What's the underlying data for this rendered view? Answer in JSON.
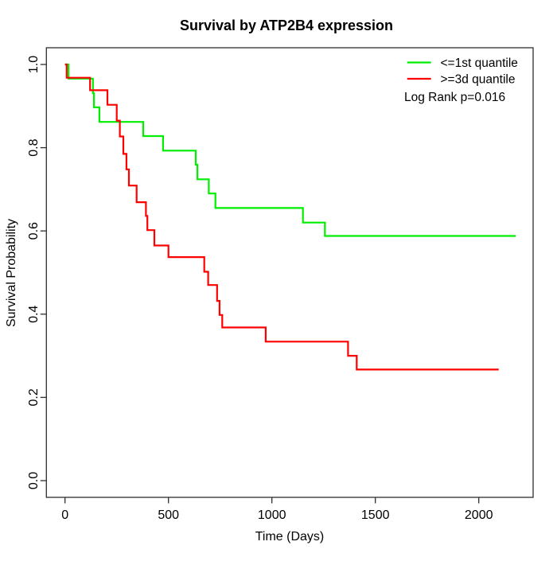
{
  "chart_data": {
    "type": "line",
    "subtype": "kaplan-meier-step",
    "title": "Survival by ATP2B4 expression",
    "xlabel": "Time (Days)",
    "ylabel": "Survival Probability",
    "xlim": [
      0,
      2200
    ],
    "ylim": [
      0.0,
      1.0
    ],
    "x_ticks": [
      0,
      500,
      1000,
      1500,
      2000
    ],
    "x_tick_labels": [
      "0",
      "500",
      "1000",
      "1500",
      "2000"
    ],
    "y_ticks": [
      0.0,
      0.2,
      0.4,
      0.6,
      0.8,
      1.0
    ],
    "y_tick_labels": [
      "0.0",
      "0.2",
      "0.4",
      "0.6",
      "0.8",
      "1.0"
    ],
    "grid": false,
    "legend_position": "top-right",
    "annotation": "Log Rank p=0.016",
    "series": [
      {
        "name": "<=1st quantile",
        "color": "#00ee00",
        "start": [
          0,
          1.0
        ],
        "steps": [
          [
            17,
            0.966
          ],
          [
            135,
            0.931
          ],
          [
            140,
            0.897
          ],
          [
            166,
            0.862
          ],
          [
            378,
            0.828
          ],
          [
            474,
            0.793
          ],
          [
            632,
            0.759
          ],
          [
            640,
            0.724
          ],
          [
            695,
            0.69
          ],
          [
            727,
            0.655
          ],
          [
            1150,
            0.62
          ],
          [
            1256,
            0.588
          ]
        ],
        "end_time": 2179,
        "final_value": 0.588
      },
      {
        "name": ">=3d quantile",
        "color": "#ff0000",
        "start": [
          0,
          1.0
        ],
        "steps": [
          [
            8,
            0.968
          ],
          [
            121,
            0.938
          ],
          [
            205,
            0.903
          ],
          [
            250,
            0.865
          ],
          [
            265,
            0.827
          ],
          [
            282,
            0.785
          ],
          [
            297,
            0.748
          ],
          [
            309,
            0.709
          ],
          [
            346,
            0.669
          ],
          [
            391,
            0.636
          ],
          [
            398,
            0.602
          ],
          [
            432,
            0.565
          ],
          [
            500,
            0.537
          ],
          [
            673,
            0.502
          ],
          [
            692,
            0.47
          ],
          [
            735,
            0.432
          ],
          [
            747,
            0.398
          ],
          [
            760,
            0.368
          ],
          [
            970,
            0.334
          ],
          [
            1368,
            0.3
          ],
          [
            1410,
            0.267
          ]
        ],
        "end_time": 2096,
        "final_value": 0.267
      }
    ]
  },
  "legend": {
    "items": [
      {
        "label": "<=1st quantile",
        "color": "#00ee00"
      },
      {
        "label": ">=3d quantile",
        "color": "#ff0000"
      }
    ],
    "annotation": "Log Rank p=0.016"
  }
}
